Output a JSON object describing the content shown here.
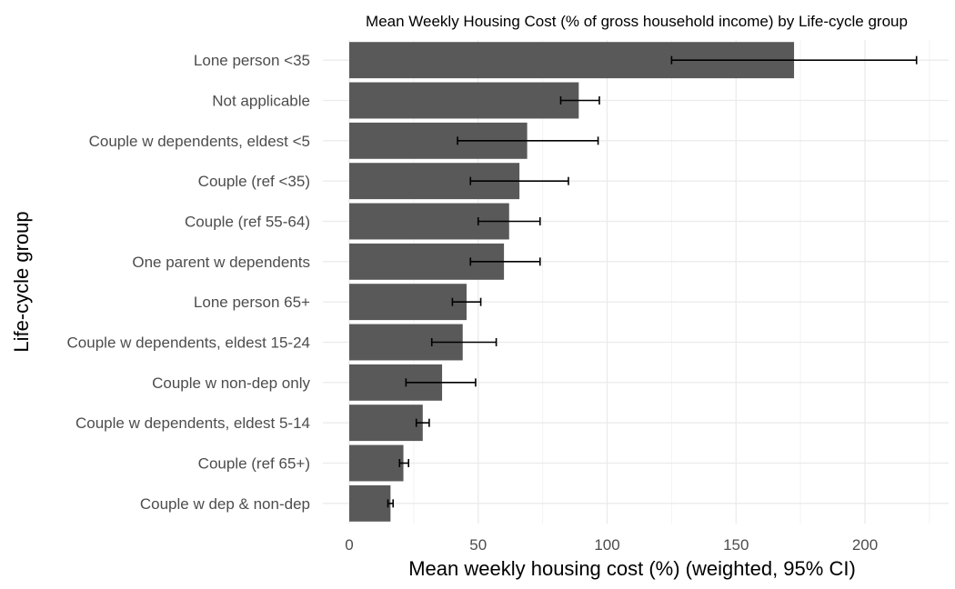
{
  "chart_data": {
    "type": "bar",
    "orientation": "horizontal",
    "title": "Mean Weekly Housing Cost (% of gross household income) by Life-cycle group",
    "xlabel": "Mean weekly housing cost (%) (weighted, 95% CI)",
    "ylabel": "Life-cycle group",
    "xlim": [
      0,
      230
    ],
    "xticks": [
      0,
      50,
      100,
      150,
      200
    ],
    "grid": true,
    "bar_color": "#595959",
    "errorbar_color": "#000000",
    "grid_color": "#ebebeb",
    "categories": [
      "Lone person <35",
      "Not applicable",
      "Couple w dependents, eldest <5",
      "Couple (ref <35)",
      "Couple (ref 55-64)",
      "One parent w dependents",
      "Lone person 65+",
      "Couple w dependents, eldest 15-24",
      "Couple w non-dep only",
      "Couple w dependents, eldest 5-14",
      "Couple (ref 65+)",
      "Couple w dep & non-dep"
    ],
    "values": [
      172.5,
      89,
      69,
      66,
      62,
      60,
      45.5,
      44,
      36,
      28.5,
      21,
      16
    ],
    "ci_low": [
      125,
      82,
      42,
      47,
      50,
      47,
      40,
      32,
      22,
      26,
      19.5,
      15
    ],
    "ci_high": [
      220,
      97,
      96.5,
      85,
      74,
      74,
      51,
      57,
      49,
      31,
      23,
      17
    ]
  }
}
